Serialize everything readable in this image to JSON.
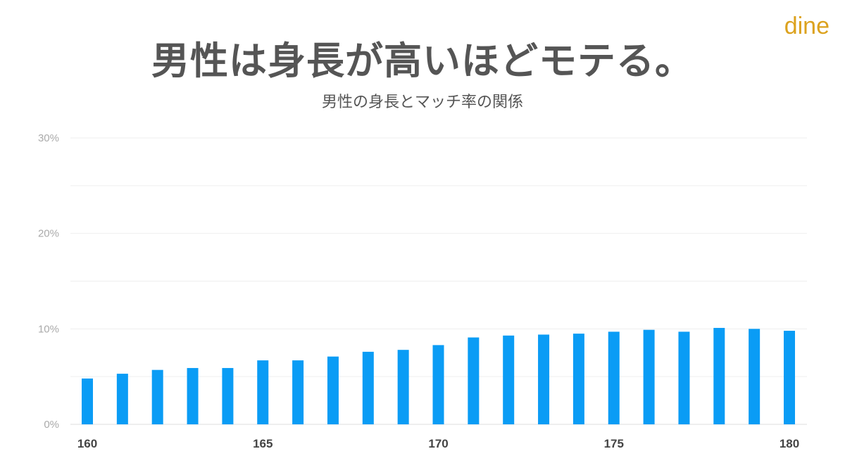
{
  "title": "男性は身長が高いほどモテる。",
  "logo": "dine",
  "chart_data": {
    "type": "bar",
    "title": "男性の身長とマッチ率の関係",
    "xlabel": "",
    "ylabel": "",
    "categories": [
      160,
      161,
      162,
      163,
      164,
      165,
      166,
      167,
      168,
      169,
      170,
      171,
      172,
      173,
      174,
      175,
      176,
      177,
      178,
      179,
      180
    ],
    "values": [
      4.8,
      5.3,
      5.7,
      5.9,
      5.9,
      6.7,
      6.7,
      7.1,
      7.6,
      7.8,
      8.3,
      9.1,
      9.3,
      9.4,
      9.5,
      9.7,
      9.9,
      9.7,
      10.1,
      10.0,
      9.8
    ],
    "value_unit": "%",
    "ylim": [
      0,
      30
    ],
    "yticks": [
      "0%",
      "10%",
      "20%",
      "30%"
    ],
    "xticks": [
      "160",
      "165",
      "170",
      "175",
      "180"
    ],
    "grid": true,
    "bar_color": "#0a9cf5"
  }
}
